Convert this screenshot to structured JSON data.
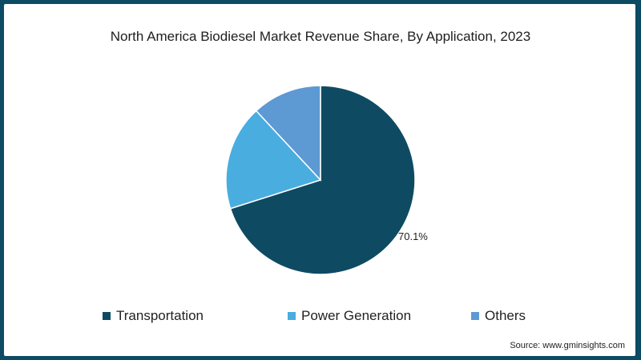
{
  "title": "North America Biodiesel Market Revenue Share, By Application, 2023",
  "source": "Source: www.gminsights.com",
  "colors": {
    "border": "#0d4a63",
    "transportation": "#0e4b63",
    "power_generation": "#49ade0",
    "others": "#5d99d3"
  },
  "labels": {
    "transportation_pct": "70.1%"
  },
  "legend": [
    {
      "label": "Transportation",
      "color": "#0e4b63"
    },
    {
      "label": "Power Generation",
      "color": "#49ade0"
    },
    {
      "label": "Others",
      "color": "#5d99d3"
    }
  ],
  "chart_data": {
    "type": "pie",
    "title": "North America Biodiesel Market Revenue Share, By Application, 2023",
    "categories": [
      "Transportation",
      "Power Generation",
      "Others"
    ],
    "values": [
      70.1,
      18.0,
      11.9
    ],
    "data_labels": [
      "70.1%",
      "",
      ""
    ],
    "legend_position": "bottom",
    "start_angle": "top, clockwise"
  }
}
